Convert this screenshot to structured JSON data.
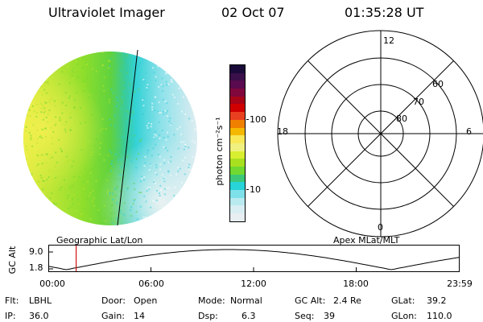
{
  "header": {
    "title": "Ultraviolet Imager",
    "date": "02 Oct 07",
    "time": "01:35:28 UT"
  },
  "colorbar": {
    "unit_label": "photon cm⁻²s⁻¹",
    "tick_labels": [
      "100",
      "10"
    ],
    "colors": [
      "#1a0a3a",
      "#3a0f4a",
      "#5a0a4e",
      "#80083c",
      "#a80418",
      "#d00000",
      "#e84020",
      "#f08000",
      "#f5b800",
      "#f8e858",
      "#f0f080",
      "#d8ee30",
      "#a8e020",
      "#70d830",
      "#3cc878",
      "#28d4d8",
      "#7ee0e8",
      "#b8eaf0",
      "#d8eef2",
      "#e8eef2"
    ]
  },
  "polar": {
    "mlt_labels": {
      "top": "12",
      "left": "18",
      "right": "6",
      "bottom": "0"
    },
    "lat_labels": [
      "60",
      "70",
      "80"
    ]
  },
  "plot": {
    "left_label": "Geographic Lat/Lon",
    "right_label": "Apex MLat/MLT",
    "y_axis_label": "GC Alt",
    "y_ticks": [
      "9.0",
      "1.8"
    ],
    "x_ticks": [
      "00:00",
      "06:00",
      "12:00",
      "18:00",
      "23:59"
    ],
    "marker_time": "01:35",
    "marker_color": "#d01010"
  },
  "status": {
    "filter_label": "Flt:",
    "filter_value": "LBHL",
    "ip_label": "IP:",
    "ip_value": "36.0",
    "door_label": "Door:",
    "door_value": "Open",
    "gain_label": "Gain:",
    "gain_value": "14",
    "mode_label": "Mode:",
    "mode_value": "Normal",
    "dsp_label": "Dsp:",
    "dsp_value": "6.3",
    "gcalt_label": "GC Alt:",
    "gcalt_value": "2.4 Re",
    "seq_label": "Seq:",
    "seq_value": "39",
    "glat_label": "GLat:",
    "glat_value": "39.2",
    "glon_label": "GLon:",
    "glon_value": "110.0"
  }
}
